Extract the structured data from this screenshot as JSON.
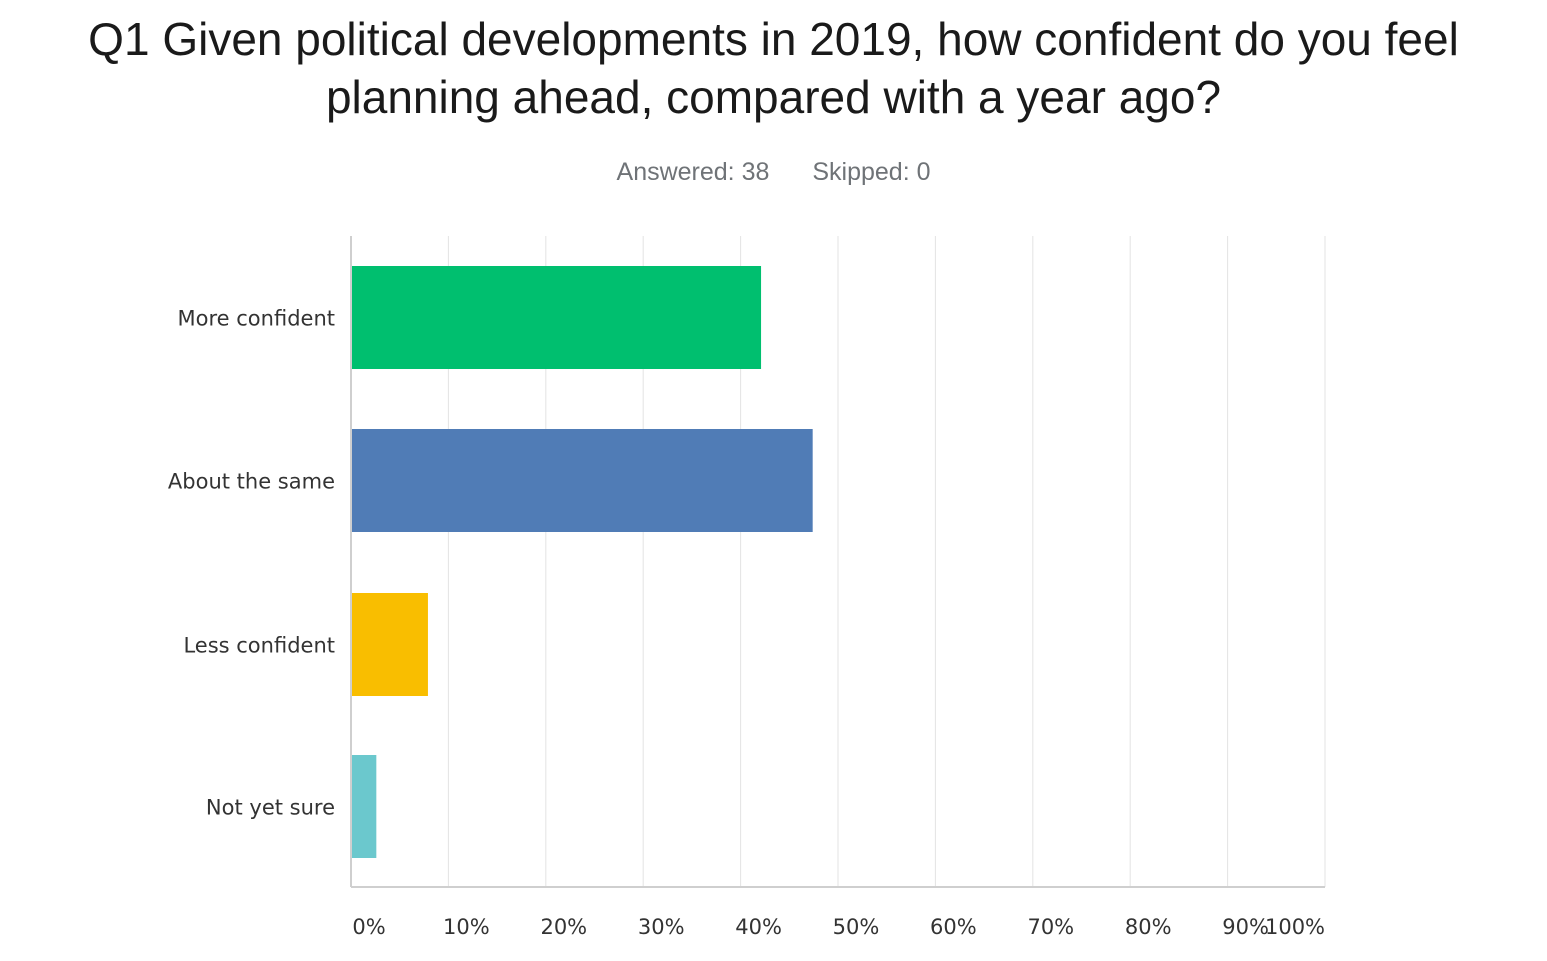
{
  "header": {
    "title_line1": "Q1 Given political developments in 2019, how confident do you feel",
    "title_line2": "planning ahead, compared with a year ago?",
    "answered": "Answered: 38",
    "skipped": "Skipped: 0"
  },
  "chart_data": {
    "type": "bar",
    "orientation": "horizontal",
    "title": "Q1 Given political developments in 2019, how confident do you feel planning ahead, compared with a year ago?",
    "categories": [
      "More confident",
      "About the same",
      "Less confident",
      "Not yet sure"
    ],
    "values": [
      42.1,
      47.4,
      7.9,
      2.6
    ],
    "unit": "%",
    "colors": [
      "#00bf6f",
      "#507cb6",
      "#f9be00",
      "#6bc8cd"
    ],
    "xlim": [
      0,
      100
    ],
    "xticks": [
      "0%",
      "10%",
      "20%",
      "30%",
      "40%",
      "50%",
      "60%",
      "70%",
      "80%",
      "90%",
      "100%"
    ],
    "grid": true,
    "legend": "none"
  }
}
